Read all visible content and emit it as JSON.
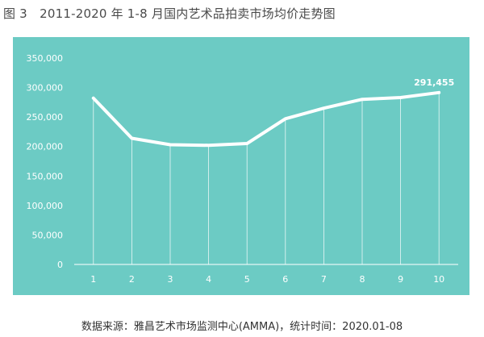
{
  "figure": {
    "title": "图 3　2011-2020 年 1-8 月国内艺术品拍卖市场均价走势图",
    "source": "数据来源：雅昌艺术市场监测中心(AMMA)，统计时间：2020.01-08"
  },
  "colors": {
    "panel": "#6ccbc4",
    "line": "#ffffff",
    "grid": "#ffffff"
  },
  "chart_data": {
    "type": "line",
    "title": "图 3　2011-2020 年 1-8 月国内艺术品拍卖市场均价走势图",
    "xlabel": "",
    "ylabel": "",
    "categories": [
      "1",
      "2",
      "3",
      "4",
      "5",
      "6",
      "7",
      "8",
      "9",
      "10"
    ],
    "values": [
      282000,
      214000,
      203000,
      202000,
      205000,
      247000,
      265000,
      280000,
      283000,
      291455
    ],
    "ylim": [
      0,
      350000
    ],
    "yticks": [
      "0",
      "50,000",
      "100,000",
      "150,000",
      "200,000",
      "250,000",
      "300,000",
      "350,000"
    ],
    "data_labels": [
      {
        "index": 9,
        "text": "291,455"
      }
    ],
    "grid": "vertical drop lines",
    "legend": "none"
  }
}
